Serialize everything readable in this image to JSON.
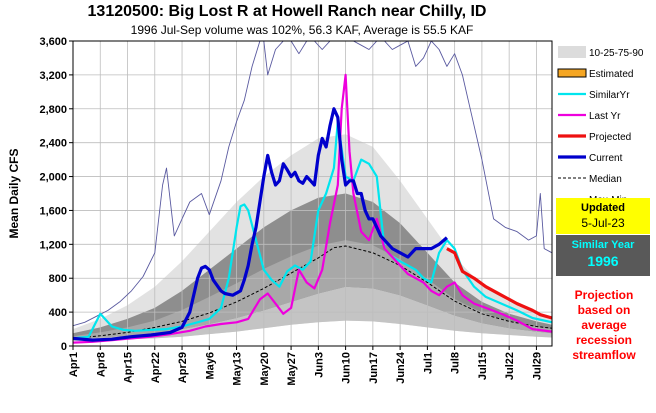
{
  "chart_data": {
    "type": "line",
    "title": "13120500: Big Lost R at Howell Ranch near Chilly, ID",
    "subtitle": "1996 Jul-Sep volume was 102%, 56.3 KAF, Average is 55.5 KAF",
    "ylabel": "Mean Daily CFS",
    "xlabel": "",
    "ylim": [
      0,
      3600
    ],
    "xlim_days": [
      0,
      123
    ],
    "yticks": [
      0,
      400,
      800,
      1200,
      1600,
      2000,
      2400,
      2800,
      3200,
      3600
    ],
    "yticklabels": [
      "0",
      "400",
      "800",
      "1,200",
      "1,600",
      "2,000",
      "2,400",
      "2,800",
      "3,200",
      "3,600"
    ],
    "xtick_days": [
      0,
      7,
      14,
      21,
      28,
      35,
      42,
      49,
      56,
      63,
      70,
      77,
      84,
      91,
      98,
      105,
      112,
      119
    ],
    "xticklabels": [
      "Apr1",
      "Apr8",
      "Apr15",
      "Apr22",
      "Apr29",
      "May6",
      "May13",
      "May20",
      "May27",
      "Jun3",
      "Jun10",
      "Jun17",
      "Jun24",
      "Jul1",
      "Jul8",
      "Jul15",
      "Jul22",
      "Jul29"
    ],
    "grid": true,
    "percentile_bands": {
      "x": [
        0,
        7,
        14,
        21,
        28,
        35,
        42,
        49,
        56,
        63,
        70,
        77,
        84,
        91,
        98,
        105,
        112,
        119,
        123
      ],
      "p10": [
        60,
        70,
        80,
        90,
        110,
        140,
        170,
        210,
        250,
        280,
        300,
        290,
        260,
        220,
        180,
        150,
        130,
        110,
        100
      ],
      "p25": [
        80,
        100,
        120,
        150,
        200,
        260,
        330,
        420,
        520,
        620,
        700,
        680,
        600,
        480,
        360,
        270,
        210,
        170,
        150
      ],
      "p75": [
        150,
        220,
        320,
        450,
        650,
        900,
        1150,
        1400,
        1600,
        1750,
        1800,
        1700,
        1450,
        1100,
        750,
        520,
        380,
        290,
        250
      ],
      "p90": [
        200,
        320,
        480,
        700,
        1000,
        1350,
        1700,
        2000,
        2250,
        2450,
        2500,
        2350,
        1950,
        1500,
        1050,
        720,
        520,
        400,
        340
      ]
    },
    "series": [
      {
        "name": "Max-Min",
        "color": "#5a5aa0",
        "style": "thin",
        "x": [
          0,
          3,
          6,
          9,
          12,
          15,
          18,
          21,
          23,
          24,
          26,
          28,
          30,
          33,
          35,
          38,
          40,
          42,
          44,
          46,
          48,
          49,
          50,
          52,
          54,
          56,
          58,
          60,
          62,
          64,
          66,
          68,
          70,
          72,
          74,
          76,
          78,
          80,
          82,
          84,
          86,
          88,
          90,
          92,
          94,
          96,
          98,
          100,
          102,
          105,
          108,
          111,
          114,
          117,
          119,
          120,
          121,
          123
        ],
        "values": [
          240,
          280,
          350,
          420,
          520,
          650,
          820,
          1100,
          1900,
          2100,
          1300,
          1500,
          1700,
          1800,
          1550,
          1950,
          2350,
          2650,
          2900,
          3300,
          3600,
          3600,
          3200,
          3500,
          3600,
          3600,
          3450,
          3600,
          3600,
          3500,
          3600,
          3600,
          3600,
          3600,
          3550,
          3500,
          3600,
          3600,
          3500,
          3550,
          3600,
          3300,
          3400,
          3600,
          3500,
          3300,
          3450,
          3200,
          2800,
          2200,
          1500,
          1400,
          1350,
          1250,
          1300,
          1800,
          1150,
          1100
        ]
      },
      {
        "name": "Median",
        "color": "#000000",
        "style": "dashed",
        "x": [
          0,
          7,
          14,
          21,
          28,
          35,
          42,
          49,
          56,
          63,
          67,
          70,
          77,
          84,
          91,
          98,
          105,
          112,
          119,
          123
        ],
        "values": [
          90,
          120,
          160,
          220,
          290,
          390,
          520,
          680,
          860,
          1040,
          1160,
          1180,
          1100,
          950,
          750,
          530,
          380,
          290,
          230,
          210
        ]
      },
      {
        "name": "SimilarYr",
        "color": "#00e5ee",
        "style": "medium",
        "x": [
          0,
          4,
          7,
          10,
          13,
          16,
          20,
          24,
          28,
          32,
          35,
          38,
          40,
          42,
          43,
          44,
          45,
          47,
          49,
          51,
          53,
          55,
          57,
          59,
          61,
          63,
          65,
          67,
          68,
          70,
          72,
          74,
          76,
          78,
          80,
          82,
          84,
          86,
          88,
          90,
          92,
          94,
          96,
          98,
          100,
          103,
          106,
          110,
          114,
          118,
          123
        ],
        "values": [
          90,
          110,
          380,
          230,
          190,
          180,
          190,
          200,
          230,
          280,
          320,
          450,
          800,
          1400,
          1650,
          1670,
          1600,
          1250,
          900,
          780,
          700,
          880,
          950,
          900,
          1000,
          1600,
          1800,
          2100,
          2650,
          2000,
          1950,
          2200,
          2150,
          2000,
          1150,
          1050,
          1000,
          950,
          900,
          800,
          750,
          1100,
          1250,
          1150,
          900,
          700,
          580,
          500,
          420,
          330,
          280
        ]
      },
      {
        "name": "Last Yr",
        "color": "#ee00dd",
        "style": "medium",
        "x": [
          0,
          5,
          10,
          15,
          20,
          25,
          30,
          34,
          38,
          42,
          45,
          48,
          50,
          52,
          54,
          56,
          58,
          60,
          62,
          64,
          66,
          68,
          69,
          70,
          71,
          72,
          74,
          76,
          78,
          80,
          82,
          84,
          86,
          88,
          90,
          92,
          94,
          96,
          98,
          100,
          103,
          106,
          110,
          114,
          118,
          123
        ],
        "values": [
          40,
          50,
          70,
          90,
          110,
          140,
          180,
          230,
          260,
          280,
          320,
          550,
          620,
          500,
          380,
          450,
          900,
          750,
          680,
          900,
          1450,
          1900,
          2800,
          3200,
          2300,
          1800,
          1350,
          1250,
          1500,
          1150,
          1050,
          950,
          850,
          800,
          750,
          650,
          600,
          700,
          750,
          600,
          500,
          450,
          380,
          300,
          200,
          170
        ]
      },
      {
        "name": "Current",
        "color": "#0000cc",
        "style": "thick",
        "x": [
          0,
          5,
          10,
          15,
          20,
          25,
          28,
          30,
          32,
          33,
          34,
          35,
          36,
          38,
          39,
          41,
          43,
          44,
          45,
          46,
          47,
          48,
          49,
          50,
          51,
          52,
          53,
          54,
          55,
          56,
          57,
          58,
          59,
          60,
          61,
          62,
          63,
          64,
          65,
          66,
          67,
          68,
          69,
          70,
          71,
          72,
          73,
          74,
          75,
          76,
          77,
          78,
          79,
          80,
          81,
          82,
          84,
          86,
          88,
          90,
          92,
          94,
          96
        ],
        "values": [
          90,
          70,
          80,
          110,
          130,
          160,
          220,
          400,
          800,
          920,
          940,
          900,
          780,
          650,
          620,
          600,
          650,
          780,
          950,
          1200,
          1400,
          1700,
          2000,
          2250,
          2050,
          1900,
          1950,
          2150,
          2080,
          2000,
          2050,
          1950,
          1920,
          2000,
          1950,
          1900,
          2250,
          2450,
          2350,
          2600,
          2800,
          2700,
          2200,
          1900,
          1950,
          1950,
          1800,
          1800,
          1600,
          1500,
          1500,
          1400,
          1300,
          1250,
          1200,
          1150,
          1100,
          1050,
          1150,
          1150,
          1150,
          1200,
          1280
        ]
      },
      {
        "name": "Projected",
        "color": "#ee1111",
        "style": "thick",
        "x": [
          96,
          98,
          100,
          103,
          106,
          110,
          114,
          118,
          120,
          123
        ],
        "values": [
          1150,
          1100,
          880,
          800,
          700,
          600,
          500,
          420,
          370,
          330
        ]
      }
    ],
    "legend": {
      "placement": "right",
      "entries": [
        "10-25-75-90",
        "Estimated",
        "SimilarYr",
        "Last Yr",
        "Projected",
        "Current",
        "Median",
        "Max-Min"
      ]
    },
    "panels": {
      "updated_title": "Updated",
      "updated_date": "5-Jul-23",
      "similar_title": "Similar Year",
      "similar_year": "1996",
      "projection_note": "Projection based on average recession streamflow"
    }
  }
}
